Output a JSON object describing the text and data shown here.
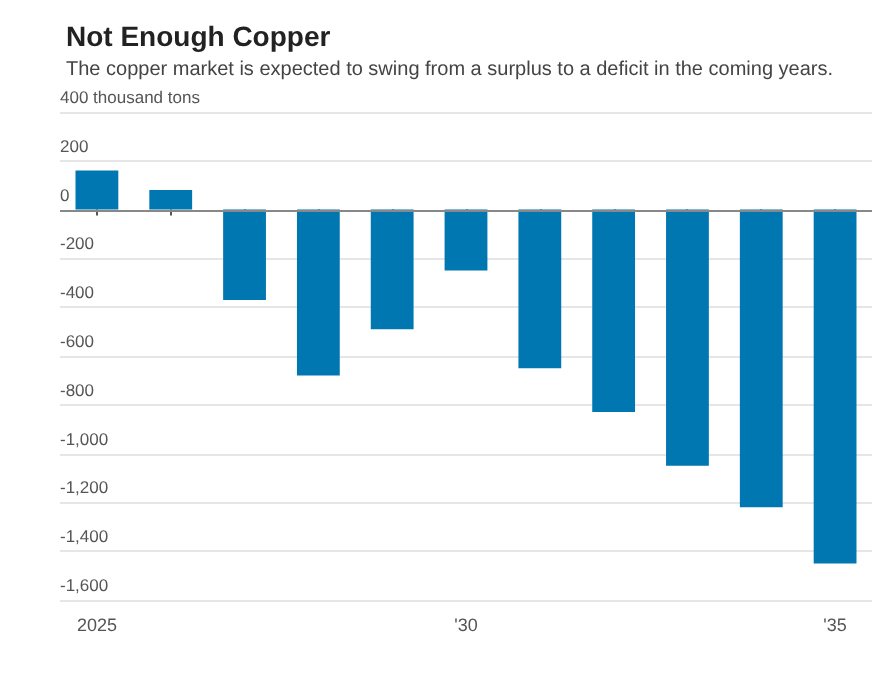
{
  "chart_data": {
    "type": "bar",
    "title": "Not Enough Copper",
    "subtitle": "The copper market is expected to swing from a surplus to a deficit in the coming years.",
    "categories": [
      "2025",
      null,
      null,
      null,
      null,
      "'30",
      null,
      null,
      null,
      null,
      "'35"
    ],
    "values": [
      160,
      80,
      -370,
      -680,
      -490,
      -250,
      -650,
      -830,
      -1050,
      -1220,
      -1450
    ],
    "color": "#0077b0",
    "ylim": [
      -1600,
      400
    ],
    "yticks": [
      {
        "value": -1600,
        "label": "-1,600"
      },
      {
        "value": -1400,
        "label": "-1,400"
      },
      {
        "value": -1200,
        "label": "-1,200"
      },
      {
        "value": -1000,
        "label": "-1,000"
      },
      -800,
      -600,
      -400,
      -200,
      0,
      200,
      {
        "value": 400,
        "label": "400 thousand tons"
      }
    ],
    "grid": "y"
  }
}
